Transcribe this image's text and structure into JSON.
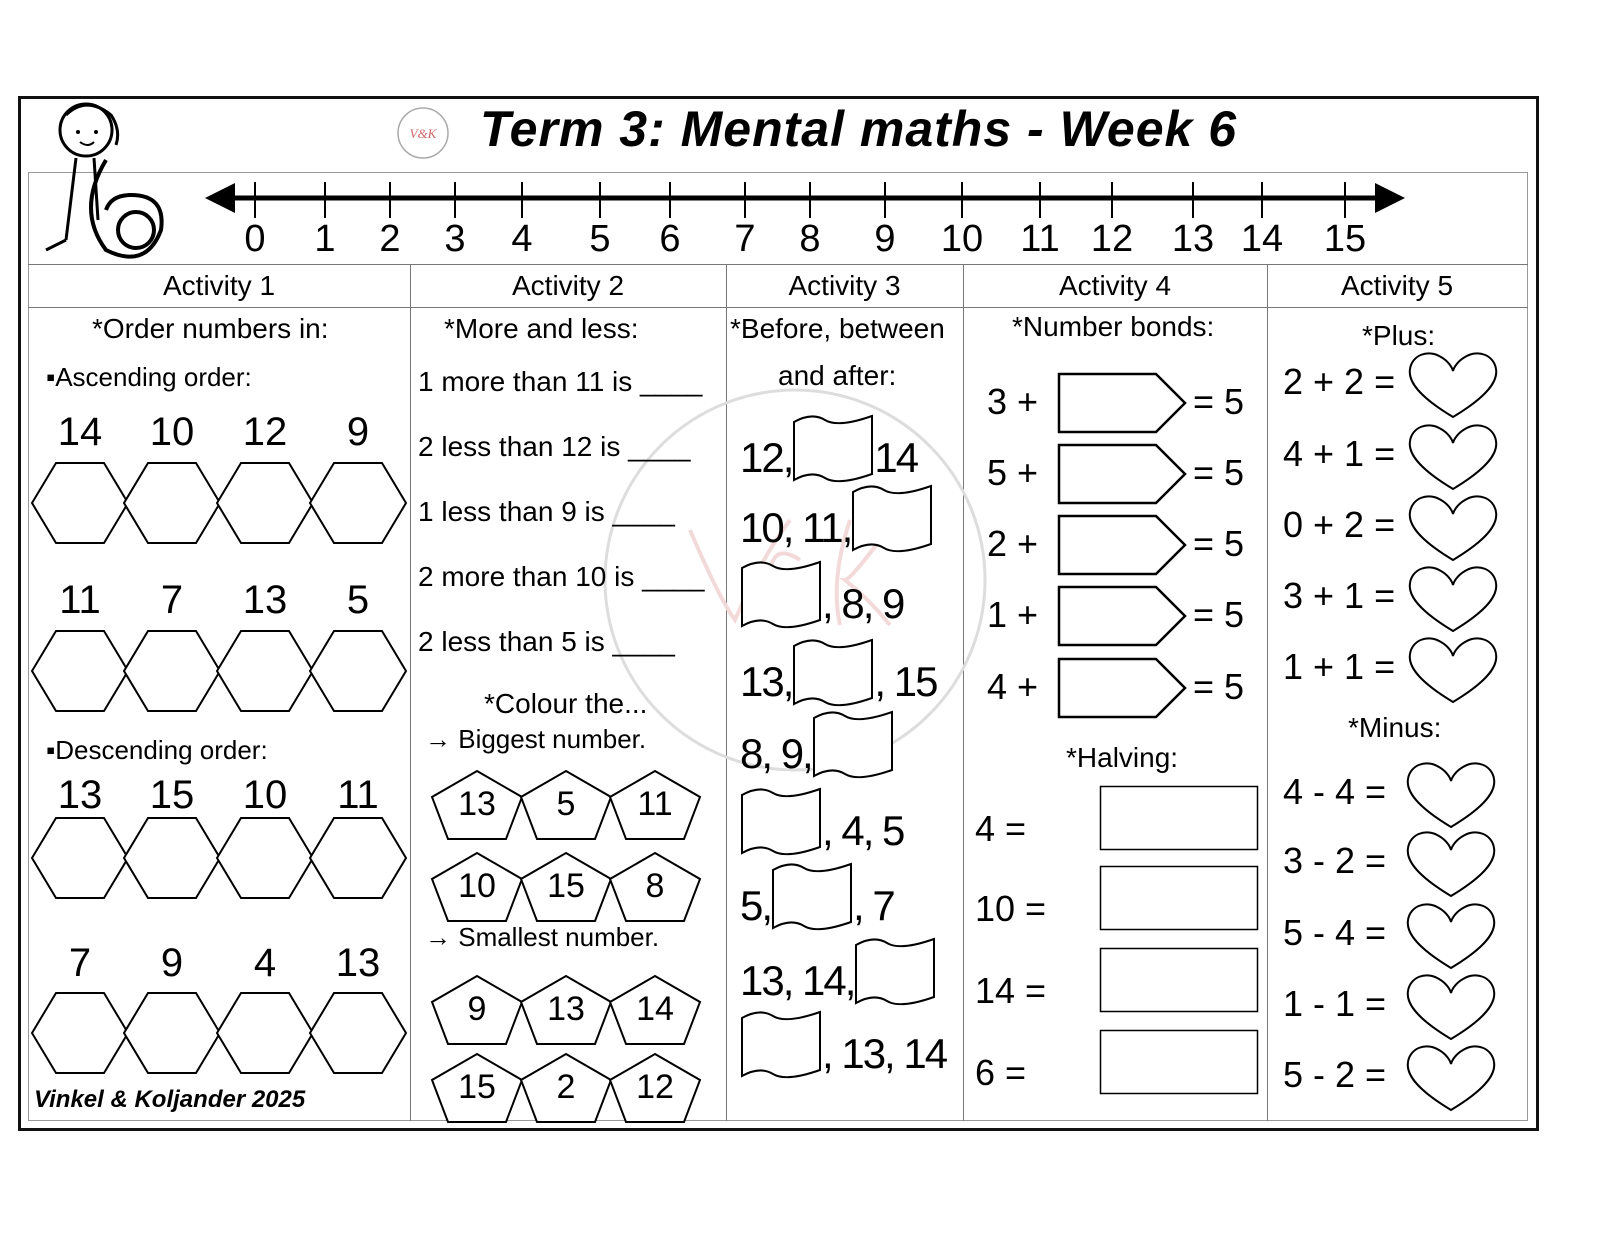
{
  "title": "Term 3: Mental maths - Week 6",
  "logo_text": "V&K",
  "footer": "Vinkel & Koljander 2025",
  "number_line": [
    "0",
    "1",
    "2",
    "3",
    "4",
    "5",
    "6",
    "7",
    "8",
    "9",
    "10",
    "11",
    "12",
    "13",
    "14",
    "15"
  ],
  "columns": [
    "Activity 1",
    "Activity 2",
    "Activity 3",
    "Activity 4",
    "Activity 5"
  ],
  "activity1": {
    "heading": "*Order numbers in:",
    "ascending_label": "▪Ascending order:",
    "descending_label": "▪Descending order:",
    "groups": [
      [
        "14",
        "10",
        "12",
        "9"
      ],
      [
        "11",
        "7",
        "13",
        "5"
      ],
      [
        "13",
        "15",
        "10",
        "11"
      ],
      [
        "7",
        "9",
        "4",
        "13"
      ]
    ]
  },
  "activity2": {
    "heading": "*More and less:",
    "questions": [
      "1 more than 11 is ____",
      "2 less than 12 is ____",
      "1 less than 9 is ____",
      "2 more than 10 is ____",
      "2 less than 5 is ____"
    ],
    "colour_heading": "*Colour the...",
    "biggest_label": "→ Biggest number.",
    "smallest_label": "→ Smallest number.",
    "biggest": [
      [
        "13",
        "5",
        "11"
      ],
      [
        "10",
        "15",
        "8"
      ]
    ],
    "smallest": [
      [
        "9",
        "13",
        "14"
      ],
      [
        "15",
        "2",
        "12"
      ]
    ]
  },
  "activity3": {
    "heading1": "*Before, between",
    "heading2": "and after:",
    "rows": [
      [
        "12,",
        "_",
        "14"
      ],
      [
        "10, 11,",
        "_",
        ""
      ],
      [
        "",
        "_",
        ", 8, 9"
      ],
      [
        "13,",
        "_",
        ", 15"
      ],
      [
        "8, 9,",
        "_",
        ""
      ],
      [
        "",
        "_",
        ", 4, 5"
      ],
      [
        "5,",
        "_",
        ", 7"
      ],
      [
        "13, 14,",
        "_",
        ""
      ],
      [
        "",
        "_",
        ", 13, 14"
      ]
    ]
  },
  "activity4": {
    "heading": "*Number bonds:",
    "bonds": [
      "3 +",
      "5 +",
      "2 +",
      "1 +",
      "4 +"
    ],
    "bond_total": "= 5",
    "halving_heading": "*Halving:",
    "halving": [
      "4 =",
      "10 =",
      "14 =",
      "6 ="
    ]
  },
  "activity5": {
    "plus_heading": "*Plus:",
    "plus": [
      "2 + 2 =",
      "4 + 1 =",
      "0 + 2 =",
      "3 + 1 =",
      "1 + 1 ="
    ],
    "minus_heading": "*Minus:",
    "minus": [
      "4 - 4 =",
      "3 - 2 =",
      "5 - 4 =",
      "1 - 1 =",
      "5 - 2 ="
    ]
  }
}
